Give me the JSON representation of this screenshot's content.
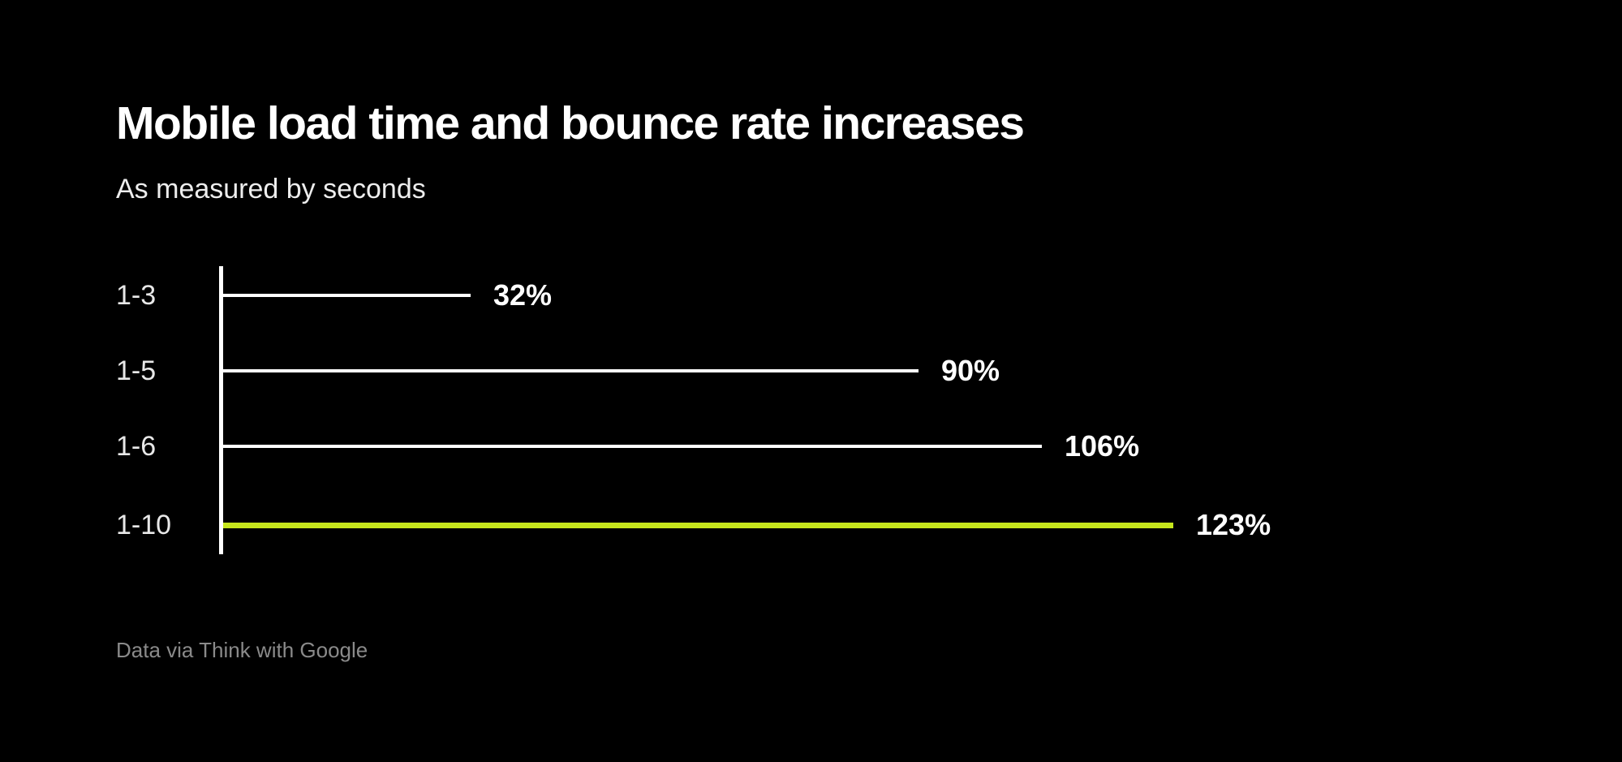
{
  "page": {
    "background_color": "#000000"
  },
  "header": {
    "title": "Mobile load time and bounce rate increases",
    "subtitle": "As measured by seconds"
  },
  "chart_data": {
    "type": "bar",
    "orientation": "horizontal",
    "title": "Mobile load time and bounce rate increases",
    "subtitle": "As measured by seconds",
    "categories": [
      "1-3",
      "1-5",
      "1-6",
      "1-10"
    ],
    "values": [
      32,
      90,
      106,
      123
    ],
    "value_labels": [
      "32%",
      "90%",
      "106%",
      "123%"
    ],
    "unit": "percent",
    "xlabel": "",
    "ylabel": "",
    "xlim": [
      0,
      123
    ],
    "grid": false,
    "legend": false,
    "bar_colors": [
      "#ffffff",
      "#ffffff",
      "#ffffff",
      "#c6e61c"
    ],
    "highlight_color": "#c6e61c",
    "axis_color": "#ffffff",
    "category_label_color": "#e8e8e8",
    "value_label_color": "#ffffff"
  },
  "footer": {
    "source": "Data via Think with Google"
  }
}
